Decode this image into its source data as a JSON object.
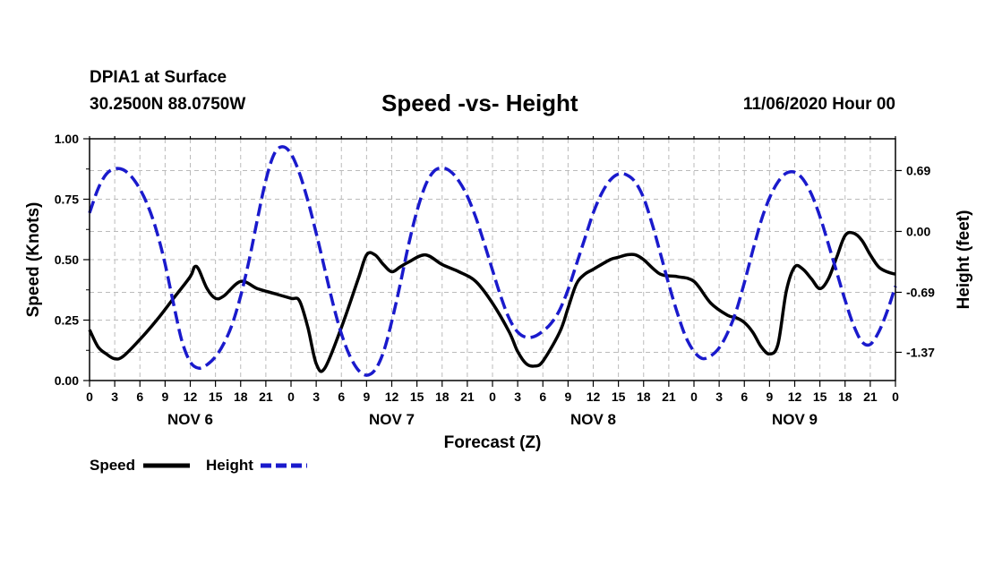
{
  "header": {
    "station": "DPIA1 at Surface",
    "coords": "30.2500N 88.0750W",
    "title": "Speed -vs- Height",
    "datetime": "11/06/2020 Hour 00"
  },
  "colors": {
    "speed": "#000000",
    "height": "#1a1acc",
    "grid": "#bbbbbb"
  },
  "chart_data": {
    "type": "line",
    "title": "Speed -vs- Height",
    "xlabel": "Forecast (Z)",
    "ylabel_left": "Speed (Knots)",
    "ylabel_right": "Height (feet)",
    "xlim": [
      0,
      96
    ],
    "ylim_left": [
      0,
      1.0
    ],
    "ylim_right": [
      -1.69,
      1.05
    ],
    "x_ticks": [
      0,
      3,
      6,
      9,
      12,
      15,
      18,
      21,
      24,
      27,
      30,
      33,
      36,
      39,
      42,
      45,
      48,
      51,
      54,
      57,
      60,
      63,
      66,
      69,
      72,
      75,
      78,
      81,
      84,
      87,
      90,
      93,
      96
    ],
    "x_tick_labels": [
      "0",
      "3",
      "6",
      "9",
      "12",
      "15",
      "18",
      "21",
      "0",
      "3",
      "6",
      "9",
      "12",
      "15",
      "18",
      "21",
      "0",
      "3",
      "6",
      "9",
      "12",
      "15",
      "18",
      "21",
      "0",
      "3",
      "6",
      "9",
      "12",
      "15",
      "18",
      "21",
      "0"
    ],
    "day_labels": [
      {
        "label": "NOV 6",
        "x": 12
      },
      {
        "label": "NOV 7",
        "x": 36
      },
      {
        "label": "NOV 8",
        "x": 60
      },
      {
        "label": "NOV 9",
        "x": 84
      }
    ],
    "y_left_ticks": [
      0,
      0.25,
      0.5,
      0.75,
      1.0
    ],
    "y_left_tick_labels": [
      "0.00",
      "0.25",
      "0.50",
      "0.75",
      "1.00"
    ],
    "y_right_ticks": [
      0.69,
      0.0,
      -0.69,
      -1.37
    ],
    "y_right_tick_labels": [
      "0.69",
      "0.00",
      "-0.69",
      "-1.37"
    ],
    "grid": true,
    "legend": [
      {
        "name": "Speed",
        "style": "solid"
      },
      {
        "name": "Height",
        "style": "dashed"
      }
    ],
    "series": [
      {
        "name": "Speed",
        "axis": "left",
        "style": "solid",
        "x": [
          0,
          1,
          2,
          3,
          4,
          6,
          8,
          10,
          12,
          12.5,
          13,
          14,
          15,
          16,
          18,
          20,
          22,
          24,
          25,
          26,
          27,
          28,
          30,
          32,
          33,
          34,
          35,
          36,
          37,
          38,
          40,
          42,
          44,
          46,
          48,
          50,
          51,
          52,
          53,
          54,
          56,
          57,
          58,
          59,
          60,
          62,
          63,
          64,
          65,
          66,
          68,
          70,
          72,
          74,
          76,
          77,
          78,
          79,
          80,
          81,
          82,
          83,
          84,
          85,
          86,
          87,
          88,
          89,
          90,
          91,
          92,
          93,
          94,
          95,
          96
        ],
        "values": [
          0.21,
          0.14,
          0.11,
          0.09,
          0.1,
          0.17,
          0.25,
          0.34,
          0.43,
          0.47,
          0.46,
          0.38,
          0.34,
          0.35,
          0.41,
          0.38,
          0.36,
          0.34,
          0.33,
          0.22,
          0.07,
          0.05,
          0.22,
          0.42,
          0.52,
          0.52,
          0.48,
          0.45,
          0.47,
          0.49,
          0.52,
          0.48,
          0.45,
          0.41,
          0.32,
          0.2,
          0.12,
          0.07,
          0.06,
          0.08,
          0.2,
          0.3,
          0.4,
          0.44,
          0.46,
          0.5,
          0.51,
          0.52,
          0.52,
          0.5,
          0.44,
          0.43,
          0.41,
          0.32,
          0.27,
          0.26,
          0.24,
          0.2,
          0.14,
          0.11,
          0.15,
          0.37,
          0.47,
          0.46,
          0.42,
          0.38,
          0.42,
          0.51,
          0.6,
          0.61,
          0.58,
          0.52,
          0.47,
          0.45,
          0.44
        ]
      },
      {
        "name": "Height",
        "axis": "right",
        "style": "dashed",
        "x": [
          0,
          1,
          2,
          3,
          4,
          5,
          6,
          7,
          8,
          9,
          10,
          11,
          12,
          13,
          14,
          15,
          16,
          17,
          18,
          19,
          20,
          21,
          22,
          23,
          24,
          25,
          26,
          27,
          28,
          29,
          30,
          31,
          32,
          33,
          34,
          35,
          36,
          37,
          38,
          39,
          40,
          41,
          42,
          43,
          44,
          45,
          46,
          47,
          48,
          49,
          50,
          51,
          52,
          53,
          54,
          55,
          56,
          57,
          58,
          59,
          60,
          61,
          62,
          63,
          64,
          65,
          66,
          67,
          68,
          69,
          70,
          71,
          72,
          73,
          74,
          75,
          76,
          77,
          78,
          79,
          80,
          81,
          82,
          83,
          84,
          85,
          86,
          87,
          88,
          89,
          90,
          91,
          92,
          93,
          94,
          95,
          96
        ],
        "values": [
          0.21,
          0.48,
          0.65,
          0.71,
          0.7,
          0.62,
          0.48,
          0.28,
          0.0,
          -0.37,
          -0.82,
          -1.24,
          -1.48,
          -1.55,
          -1.51,
          -1.42,
          -1.27,
          -1.05,
          -0.73,
          -0.33,
          0.14,
          0.58,
          0.88,
          0.96,
          0.88,
          0.66,
          0.35,
          -0.02,
          -0.42,
          -0.82,
          -1.16,
          -1.41,
          -1.57,
          -1.63,
          -1.57,
          -1.37,
          -1.02,
          -0.6,
          -0.15,
          0.23,
          0.52,
          0.68,
          0.72,
          0.68,
          0.57,
          0.4,
          0.16,
          -0.13,
          -0.44,
          -0.74,
          -0.99,
          -1.14,
          -1.2,
          -1.19,
          -1.13,
          -1.04,
          -0.89,
          -0.66,
          -0.37,
          -0.08,
          0.21,
          0.43,
          0.58,
          0.65,
          0.64,
          0.56,
          0.38,
          0.09,
          -0.25,
          -0.6,
          -0.92,
          -1.19,
          -1.36,
          -1.44,
          -1.41,
          -1.32,
          -1.15,
          -0.91,
          -0.58,
          -0.22,
          0.12,
          0.38,
          0.56,
          0.66,
          0.67,
          0.59,
          0.42,
          0.17,
          -0.14,
          -0.46,
          -0.78,
          -1.06,
          -1.25,
          -1.28,
          -1.14,
          -0.91,
          -0.62
        ]
      }
    ]
  }
}
